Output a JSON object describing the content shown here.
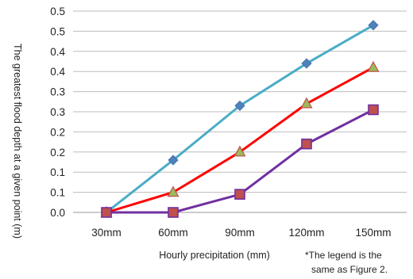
{
  "chart_data": {
    "type": "line",
    "categories": [
      "30mm",
      "60mm",
      "90mm",
      "120mm",
      "150mm"
    ],
    "y_ticks": [
      "0.0",
      "0.1",
      "0.1",
      "0.2",
      "0.2",
      "0.3",
      "0.3",
      "0.4",
      "0.4",
      "0.5",
      "0.5"
    ],
    "ylim": [
      0,
      0.5
    ],
    "xlabel": "Hourly precipitation  (mm)",
    "ylabel": "The greatest flood depth at a given point (m)",
    "grid": true,
    "series": [
      {
        "marker": "diamond",
        "color": "#4bacc6",
        "marker_color": "#4f81bd",
        "values": [
          0.0,
          0.13,
          0.265,
          0.37,
          0.465
        ]
      },
      {
        "marker": "triangle",
        "color": "#ff0000",
        "marker_color": "#9bbb59",
        "values": [
          0.0,
          0.05,
          0.15,
          0.27,
          0.36
        ]
      },
      {
        "marker": "square",
        "color": "#7030a0",
        "marker_color": "#c0504d",
        "values": [
          0.0,
          0.0,
          0.045,
          0.17,
          0.255
        ]
      }
    ],
    "note_lines": [
      "*The legend is the",
      "same as Figure 2."
    ]
  }
}
